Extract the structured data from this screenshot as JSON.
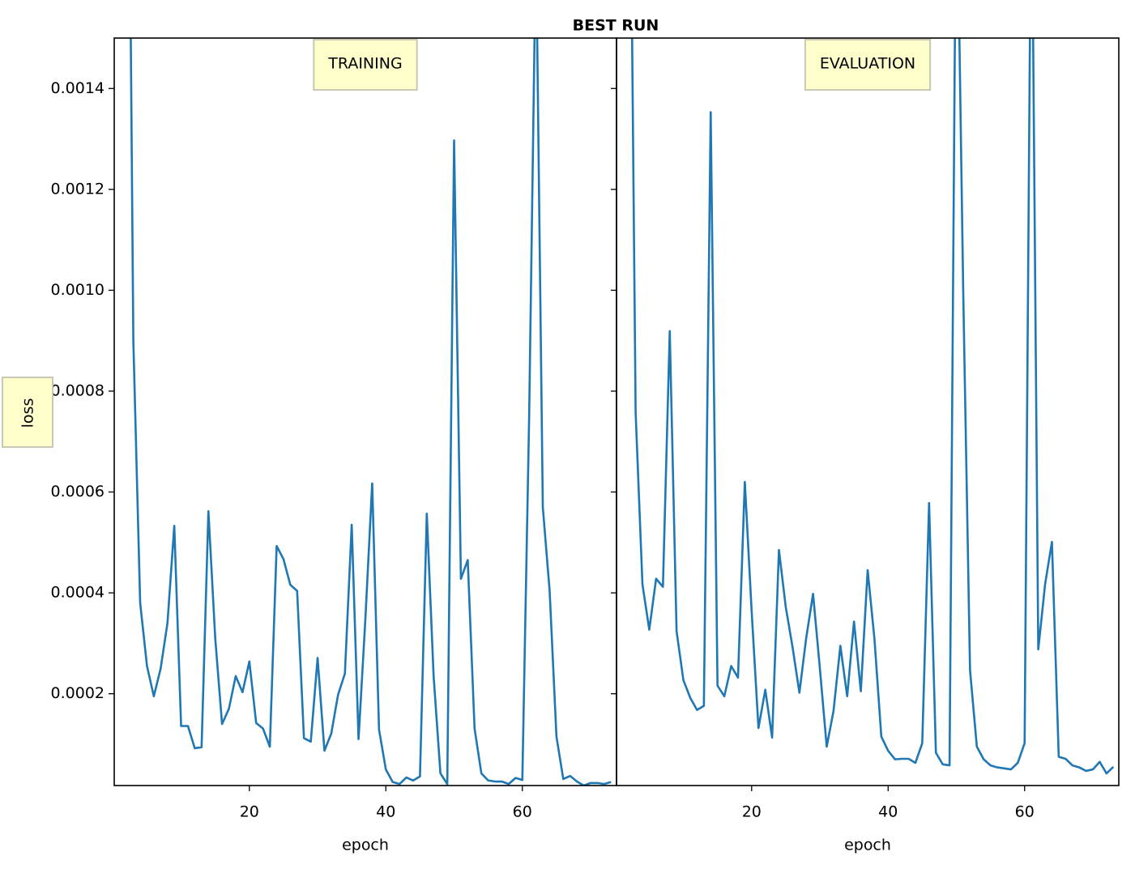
{
  "title": "BEST RUN",
  "chart_data": [
    {
      "type": "line",
      "label": "TRAINING",
      "xlabel": "epoch",
      "ylabel": "loss",
      "x": [
        2,
        3,
        4,
        5,
        6,
        7,
        8,
        9,
        10,
        11,
        12,
        13,
        14,
        15,
        16,
        17,
        18,
        19,
        20,
        21,
        22,
        23,
        24,
        25,
        26,
        27,
        28,
        29,
        30,
        31,
        32,
        33,
        34,
        35,
        36,
        37,
        38,
        39,
        40,
        41,
        42,
        43,
        44,
        45,
        46,
        47,
        48,
        49,
        50,
        51,
        52,
        53,
        54,
        55,
        56,
        57,
        58,
        59,
        60,
        61,
        62,
        63,
        64,
        65,
        66,
        67,
        68,
        69,
        70,
        71,
        72,
        73
      ],
      "values": [
        0.0025,
        0.0009,
        0.00038,
        0.000255,
        0.000195,
        0.00025,
        0.00034,
        0.000533,
        0.000136,
        0.000136,
        9.2e-05,
        9.4e-05,
        0.000562,
        0.00031,
        0.00014,
        0.00017,
        0.000235,
        0.000203,
        0.000264,
        0.000142,
        0.000131,
        9.5e-05,
        0.000493,
        0.000467,
        0.000416,
        0.000404,
        0.000112,
        0.000105,
        0.000271,
        8.7e-05,
        0.000121,
        0.000198,
        0.00024,
        0.000535,
        0.00011,
        0.000348,
        0.000617,
        0.000129,
        5e-05,
        2.5e-05,
        2.1e-05,
        3.4e-05,
        2.8e-05,
        3.6e-05,
        0.000557,
        0.000235,
        4.2e-05,
        2.1e-05,
        0.001297,
        0.000428,
        0.000465,
        0.000131,
        4.2e-05,
        2.8e-05,
        2.6e-05,
        2.6e-05,
        2.1e-05,
        3.3e-05,
        2.9e-05,
        0.00075,
        0.0017,
        0.00057,
        0.000404,
        0.000115,
        3.1e-05,
        3.7e-05,
        2.6e-05,
        1.8e-05,
        2.3e-05,
        2.3e-05,
        2.1e-05,
        2.5e-05
      ],
      "color": "#1f77b4",
      "xlim": [
        0.2,
        73.8
      ],
      "xticks": [
        20,
        40,
        60
      ],
      "ylim": [
        1.8e-05,
        0.0015
      ],
      "yticks": [
        0.0002,
        0.0004,
        0.0006,
        0.0008,
        {
          "value": 0.001,
          "label": "0.0010"
        },
        0.0012,
        0.0014
      ]
    },
    {
      "type": "line",
      "label": "EVALUATION",
      "xlabel": "epoch",
      "x": [
        2,
        3,
        4,
        5,
        6,
        7,
        8,
        9,
        10,
        11,
        12,
        13,
        14,
        15,
        16,
        17,
        18,
        19,
        20,
        21,
        22,
        23,
        24,
        25,
        26,
        27,
        28,
        29,
        30,
        31,
        32,
        33,
        34,
        35,
        36,
        37,
        38,
        39,
        40,
        41,
        42,
        43,
        44,
        45,
        46,
        47,
        48,
        49,
        50,
        51,
        52,
        53,
        54,
        55,
        56,
        57,
        58,
        59,
        60,
        61,
        62,
        63,
        64,
        65,
        66,
        67,
        68,
        69,
        70,
        71,
        72,
        73
      ],
      "values": [
        0.0022,
        0.000758,
        0.000417,
        0.000327,
        0.000428,
        0.000412,
        0.000919,
        0.000324,
        0.000227,
        0.000192,
        0.000168,
        0.000176,
        0.001353,
        0.000216,
        0.000195,
        0.000255,
        0.000232,
        0.00062,
        0.000364,
        0.000132,
        0.000208,
        0.000113,
        0.000485,
        0.000372,
        0.000292,
        0.000202,
        0.000311,
        0.000398,
        0.00025,
        9.5e-05,
        0.000166,
        0.000295,
        0.000195,
        0.000343,
        0.000205,
        0.000445,
        0.000308,
        0.000115,
        8.7e-05,
        7e-05,
        7.1e-05,
        7.1e-05,
        6.3e-05,
        0.000102,
        0.000578,
        8.3e-05,
        6e-05,
        5.8e-05,
        0.0019,
        0.001,
        0.000247,
        9.5e-05,
        7e-05,
        5.8e-05,
        5.4e-05,
        5.2e-05,
        5e-05,
        6.3e-05,
        0.000102,
        0.0019,
        0.000288,
        0.000417,
        0.000501,
        7.5e-05,
        7.1e-05,
        5.8e-05,
        5.4e-05,
        4.7e-05,
        5e-05,
        6.5e-05,
        4.2e-05,
        5.5e-05
      ],
      "color": "#1f77b4",
      "xlim": [
        0.2,
        73.8
      ],
      "xticks": [
        20,
        40,
        60
      ],
      "ylim": [
        1.8e-05,
        0.0015
      ]
    }
  ]
}
